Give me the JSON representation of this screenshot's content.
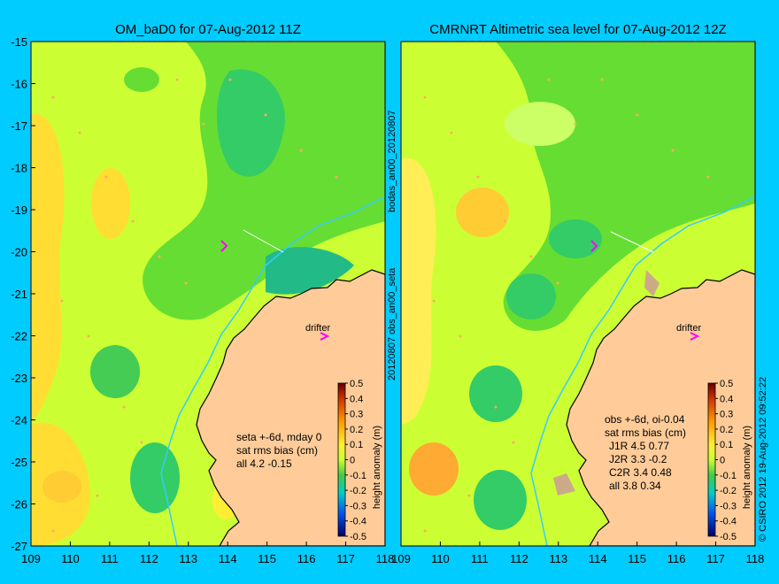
{
  "colors": {
    "background": "#00ccff",
    "land": "#ffcc99",
    "ocean_base": "#ccff33",
    "ocean_low": "#33cc66",
    "ocean_mid": "#66dd33",
    "ocean_high": "#ffcc33",
    "current_line": "#33ccff"
  },
  "chart_data": [
    {
      "type": "heatmap",
      "title": "OM_baD0 for 07-Aug-2012 11Z",
      "x_ticks": [
        "109",
        "110",
        "111",
        "112",
        "113",
        "114",
        "115",
        "116",
        "117",
        "118"
      ],
      "y_ticks": [
        "-15",
        "-16",
        "-17",
        "-18",
        "-19",
        "-20",
        "-21",
        "-22",
        "-23",
        "-24",
        "-25",
        "-26",
        "-27"
      ],
      "xlim": [
        109,
        118
      ],
      "ylim": [
        -27,
        -15
      ],
      "drifter_label": "drifter",
      "stats": [
        "seta +-6d, mday 0",
        "sat rms bias (cm)",
        "all 4.2 -0.15"
      ],
      "side_label": "20120807 obs_an00_seta",
      "side_label_top": "bodas_an00_20120807",
      "colorbar": {
        "label": "height anomaly (m)",
        "ticks": [
          "0.5",
          "0.4",
          "0.3",
          "0.2",
          "0.1",
          "0",
          "-0.1",
          "-0.2",
          "-0.3",
          "-0.4",
          "-0.5"
        ],
        "range": [
          -0.5,
          0.5
        ]
      }
    },
    {
      "type": "heatmap",
      "title": "CMRNRT Altimetric sea level  for 07-Aug-2012 12Z",
      "x_ticks": [
        "109",
        "110",
        "111",
        "112",
        "113",
        "114",
        "115",
        "116",
        "117",
        "118"
      ],
      "xlim": [
        109,
        118
      ],
      "ylim": [
        -27,
        -15
      ],
      "drifter_label": "drifter",
      "stats": [
        "obs +-6d, oi-0.04",
        "sat rms bias (cm)",
        "J1R   4.5 0.77",
        "J2R   3.3 -0.2",
        "C2R   3.4 0.48",
        "all 3.8 0.34"
      ],
      "side_label": "© CSIRO 2012   19-Aug-2012 09:52:22",
      "colorbar": {
        "label": "height anomaly (m)",
        "ticks": [
          "0.5",
          "0.4",
          "0.3",
          "0.2",
          "0.1",
          "0",
          "-0.1",
          "-0.2",
          "-0.3",
          "-0.4",
          "-0.5"
        ],
        "range": [
          -0.5,
          0.5
        ]
      }
    }
  ]
}
